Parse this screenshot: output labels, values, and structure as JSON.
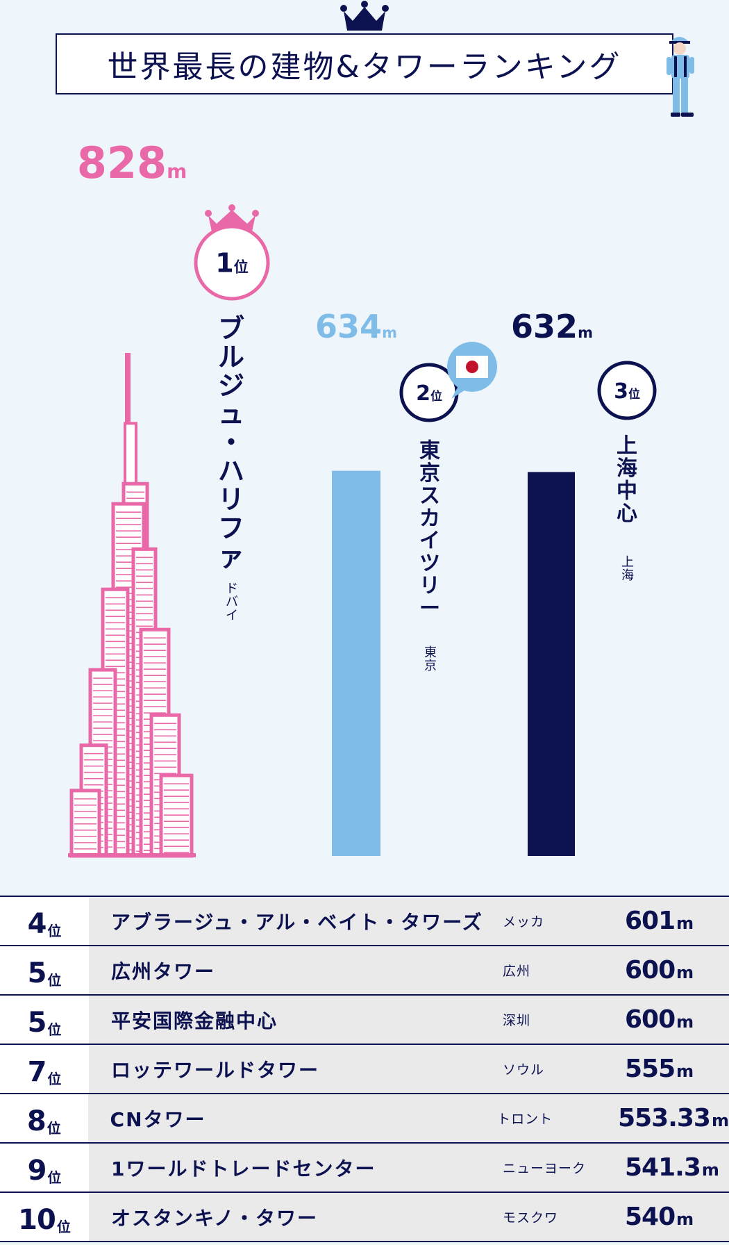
{
  "title": "世界最長の建物&タワーランキング",
  "colors": {
    "navy": "#0c1150",
    "pink": "#e968a8",
    "light_blue": "#7fbde8",
    "background": "#eef5fb"
  },
  "chart_data": {
    "type": "bar",
    "categories": [
      "ブルジュ・ハリファ",
      "東京スカイツリー",
      "上海中心"
    ],
    "values": [
      828,
      634,
      632
    ],
    "unit": "m",
    "ranks": [
      1,
      2,
      3
    ],
    "rank_suffix": "位",
    "cities": [
      "ドバイ",
      "東京",
      "上海"
    ],
    "value_labels": [
      "828",
      "634",
      "632"
    ],
    "colors": [
      "#e968a8",
      "#7fbde8",
      "#0c1150"
    ],
    "ylim": [
      0,
      828
    ]
  },
  "ranking": {
    "rank_suffix": "位",
    "unit": "m",
    "rows": [
      {
        "rank": "4",
        "name": "アブラージュ・アル・ベイト・タワーズ",
        "city": "メッカ",
        "height": "601"
      },
      {
        "rank": "5",
        "name": "広州タワー",
        "city": "広州",
        "height": "600"
      },
      {
        "rank": "5",
        "name": "平安国際金融中心",
        "city": "深圳",
        "height": "600"
      },
      {
        "rank": "7",
        "name": "ロッテワールドタワー",
        "city": "ソウル",
        "height": "555"
      },
      {
        "rank": "8",
        "name": "CNタワー",
        "city": "トロント",
        "height": "553.33"
      },
      {
        "rank": "9",
        "name": "1ワールドトレードセンター",
        "city": "ニューヨーク",
        "height": "541.3"
      },
      {
        "rank": "10",
        "name": "オスタンキノ・タワー",
        "city": "モスクワ",
        "height": "540"
      }
    ]
  }
}
